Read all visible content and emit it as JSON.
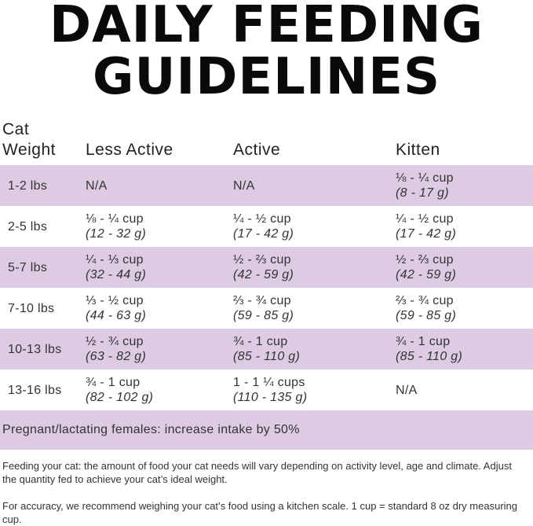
{
  "title": {
    "line1": "DAILY FEEDING",
    "line2": "GUIDELINES"
  },
  "columns": {
    "weight_line1": "Cat",
    "weight_line2": "Weight",
    "less_active": "Less Active",
    "active": "Active",
    "kitten": "Kitten"
  },
  "rows": [
    {
      "weight": "1-2 lbs",
      "less_active": {
        "cup": "N/A",
        "grams": ""
      },
      "active": {
        "cup": "N/A",
        "grams": ""
      },
      "kitten": {
        "cup": "⅛ - ¼ cup",
        "grams": "(8 - 17 g)"
      }
    },
    {
      "weight": "2-5 lbs",
      "less_active": {
        "cup": "⅛ - ¼ cup",
        "grams": "(12 - 32 g)"
      },
      "active": {
        "cup": "¼ - ½ cup",
        "grams": "(17 - 42 g)"
      },
      "kitten": {
        "cup": "¼ - ½ cup",
        "grams": "(17 - 42 g)"
      }
    },
    {
      "weight": "5-7 lbs",
      "less_active": {
        "cup": "¼ - ⅓ cup",
        "grams": "(32 - 44 g)"
      },
      "active": {
        "cup": "½ - ⅔ cup",
        "grams": "(42 - 59 g)"
      },
      "kitten": {
        "cup": "½ - ⅔ cup",
        "grams": "(42 - 59 g)"
      }
    },
    {
      "weight": "7-10 lbs",
      "less_active": {
        "cup": "⅓ - ½ cup",
        "grams": "(44 - 63 g)"
      },
      "active": {
        "cup": "⅔ - ¾ cup",
        "grams": "(59 - 85 g)"
      },
      "kitten": {
        "cup": "⅔ - ¾ cup",
        "grams": "(59 - 85 g)"
      }
    },
    {
      "weight": "10-13 lbs",
      "less_active": {
        "cup": "½ - ¾ cup",
        "grams": "(63 - 82 g)"
      },
      "active": {
        "cup": "¾ - 1 cup",
        "grams": "(85 - 110 g)"
      },
      "kitten": {
        "cup": "¾ - 1 cup",
        "grams": "(85 - 110 g)"
      }
    },
    {
      "weight": "13-16 lbs",
      "less_active": {
        "cup": "¾ - 1 cup",
        "grams": "(82 - 102 g)"
      },
      "active": {
        "cup": "1 - 1 ¼ cups",
        "grams": "(110 - 135 g)"
      },
      "kitten": {
        "cup": "N/A",
        "grams": ""
      }
    }
  ],
  "pregnant_note": "Pregnant/lactating females: increase intake by 50%",
  "notes": {
    "feeding": "Feeding your cat: the amount of food your cat needs will vary depending on activity level, age and climate. Adjust the quantity fed to achieve your cat’s ideal weight.",
    "accuracy": "For accuracy, we recommend weighing your cat’s food using a kitchen scale. 1 cup = standard 8 oz dry measuring cup."
  },
  "colors": {
    "row_highlight": "#dccbe3"
  }
}
